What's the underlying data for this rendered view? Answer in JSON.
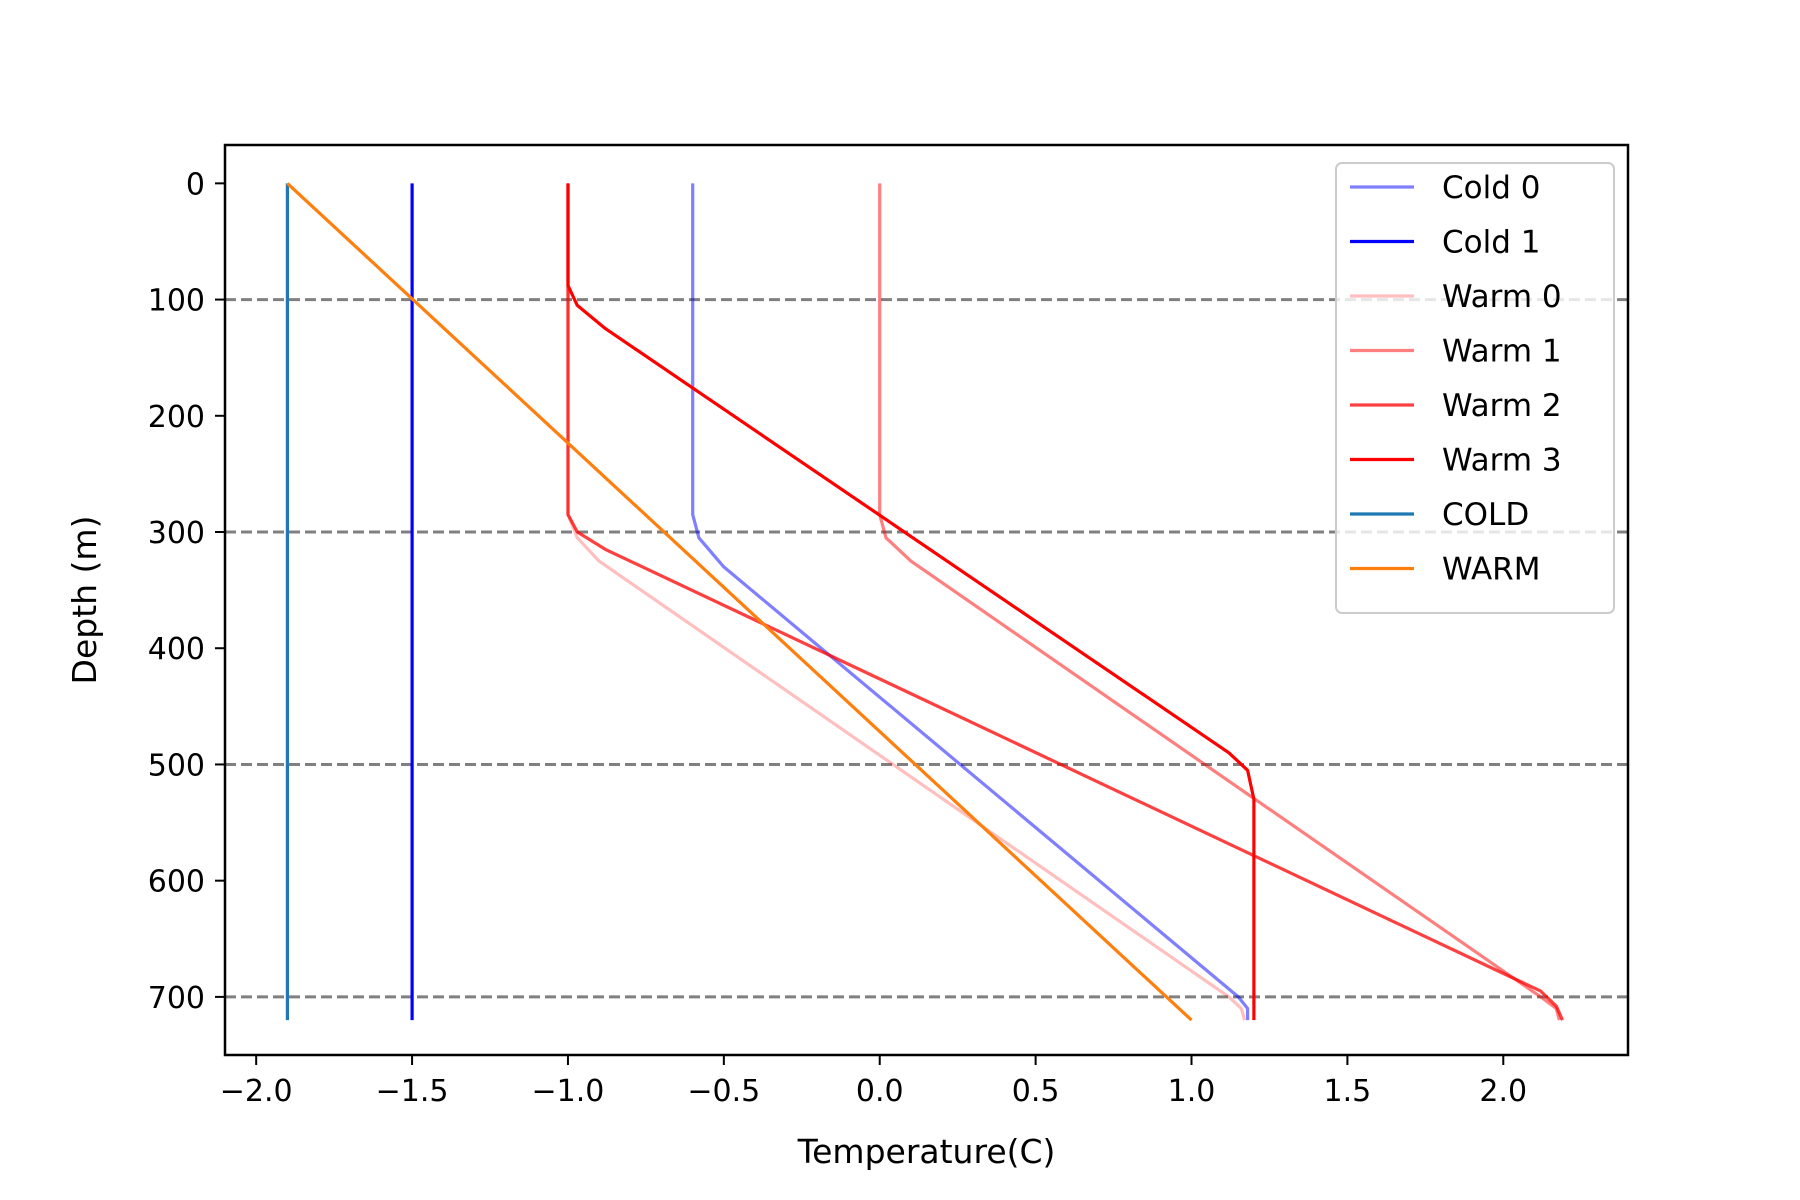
{
  "chart_data": {
    "type": "line",
    "xlabel": "Temperature(C)",
    "ylabel": "Depth (m)",
    "xlim": [
      -2.1,
      2.4
    ],
    "ylim": [
      750,
      -33
    ],
    "y_inverted": true,
    "xticks": [
      -2.0,
      -1.5,
      -1.0,
      -0.5,
      0.0,
      0.5,
      1.0,
      1.5,
      2.0
    ],
    "xtick_labels": [
      "−2.0",
      "−1.5",
      "−1.0",
      "−0.5",
      "0.0",
      "0.5",
      "1.0",
      "1.5",
      "2.0"
    ],
    "yticks": [
      0,
      100,
      200,
      300,
      400,
      500,
      600,
      700
    ],
    "ytick_labels": [
      "0",
      "100",
      "200",
      "300",
      "400",
      "500",
      "600",
      "700"
    ],
    "reference_lines": {
      "orientation": "horizontal",
      "style": "dashed",
      "color": "#808080",
      "y": [
        100,
        300,
        500,
        700
      ]
    },
    "grid": false,
    "legend_position": "upper right",
    "series": [
      {
        "name": "Cold 0",
        "color": "#0000ff",
        "opacity": 0.5,
        "x": [
          -0.6,
          -0.6,
          -0.58,
          -0.5,
          1.15,
          1.18,
          1.18
        ],
        "y": [
          0,
          285,
          305,
          330,
          700,
          710,
          720
        ]
      },
      {
        "name": "Cold 1",
        "color": "#0000ff",
        "opacity": 1.0,
        "x": [
          -1.5,
          -1.5
        ],
        "y": [
          0,
          720
        ]
      },
      {
        "name": "Warm 0",
        "color": "#ff0000",
        "opacity": 0.25,
        "x": [
          -1.0,
          -1.0,
          -0.97,
          -0.9,
          1.12,
          1.16,
          1.17
        ],
        "y": [
          0,
          285,
          305,
          325,
          700,
          710,
          720
        ]
      },
      {
        "name": "Warm 1",
        "color": "#ff0000",
        "opacity": 0.5,
        "x": [
          0.0,
          0.0,
          0.02,
          0.1,
          2.12,
          2.17,
          2.18
        ],
        "y": [
          0,
          285,
          305,
          325,
          700,
          710,
          720
        ]
      },
      {
        "name": "Warm 2",
        "color": "#ff0000",
        "opacity": 0.75,
        "x": [
          -1.0,
          -1.0,
          -0.97,
          -0.88,
          2.12,
          2.17,
          2.19
        ],
        "y": [
          0,
          285,
          300,
          315,
          695,
          708,
          720
        ]
      },
      {
        "name": "Warm 3",
        "color": "#ff0000",
        "opacity": 1.0,
        "x": [
          -1.0,
          -1.0,
          -0.97,
          -0.88,
          1.12,
          1.18,
          1.2,
          1.2
        ],
        "y": [
          0,
          88,
          105,
          125,
          490,
          505,
          530,
          720
        ]
      },
      {
        "name": "COLD",
        "color": "#1f77b4",
        "opacity": 1.0,
        "x": [
          -1.9,
          -1.9
        ],
        "y": [
          0,
          720
        ]
      },
      {
        "name": "WARM",
        "color": "#ff7f0e",
        "opacity": 1.0,
        "x": [
          -1.9,
          1.0
        ],
        "y": [
          0,
          720
        ]
      }
    ]
  }
}
